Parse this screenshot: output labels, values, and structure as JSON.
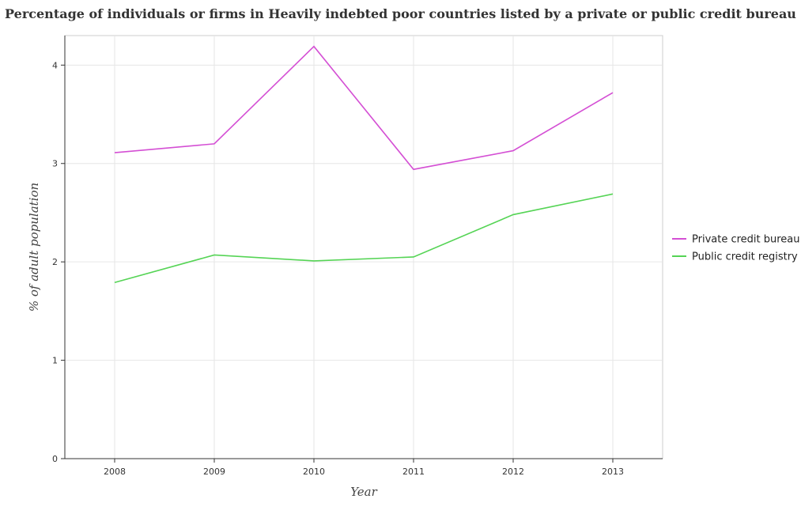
{
  "chart_data": {
    "type": "line",
    "title": "Percentage of individuals or firms in Heavily indebted poor countries listed by a private or public credit bureau",
    "xlabel": "Year",
    "ylabel": "% of adult population",
    "categories": [
      "2008",
      "2009",
      "2010",
      "2011",
      "2012",
      "2013"
    ],
    "ylim": [
      0,
      4.3
    ],
    "yticks": [
      "0",
      "1",
      "2",
      "3",
      "4"
    ],
    "grid": true,
    "legend_position": "right",
    "series": [
      {
        "name": "Private credit bureau",
        "color": "#d44fd4",
        "values": [
          3.11,
          3.2,
          4.19,
          2.94,
          3.13,
          3.72
        ]
      },
      {
        "name": "Public credit registry",
        "color": "#55d455",
        "values": [
          1.79,
          2.07,
          2.01,
          2.05,
          2.48,
          2.69
        ]
      }
    ]
  }
}
